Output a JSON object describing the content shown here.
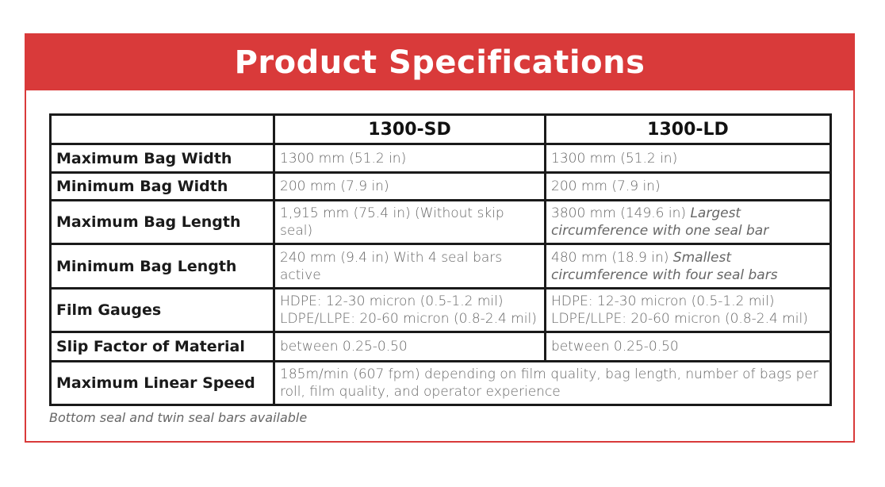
{
  "title": "Product Specifications",
  "colors": {
    "accent": "#d93a3a"
  },
  "table": {
    "models": [
      "1300-SD",
      "1300-LD"
    ],
    "rows": [
      {
        "label": "Maximum Bag Width",
        "sd": "1300 mm (51.2 in)",
        "ld": "1300 mm (51.2 in)"
      },
      {
        "label": "Minimum Bag Width",
        "sd": "200 mm (7.9 in)",
        "ld": "200 mm (7.9 in)"
      },
      {
        "label": "Maximum Bag Length",
        "sd": "1,915 mm (75.4 in) (Without skip seal)",
        "ld": "3800 mm (149.6 in)",
        "ld_note": "Largest circumference with one seal bar"
      },
      {
        "label": "Minimum Bag Length",
        "sd": "240 mm (9.4 in) With 4 seal bars active",
        "ld": "480 mm (18.9 in)",
        "ld_note": "Smallest circumference with four seal bars"
      },
      {
        "label": "Film Gauges",
        "sd_line1": "HDPE:  12-30 micron (0.5-1.2 mil)",
        "sd_line2": "LDPE/LLPE:  20-60 micron (0.8-2.4 mil)",
        "ld_line1": "HDPE:  12-30 micron (0.5-1.2 mil)",
        "ld_line2": "LDPE/LLPE:  20-60 micron (0.8-2.4 mil)"
      },
      {
        "label": "Slip Factor of Material",
        "sd": "between 0.25-0.50",
        "ld": "between 0.25-0.50"
      },
      {
        "label": "Maximum Linear Speed",
        "both": "185m/min (607 fpm) depending on film quality, bag length, number of bags per roll, film quality, and operator experience"
      }
    ]
  },
  "footnote": {
    "part1": "Bottom seal",
    "part2": " and ",
    "part3": "twin seal",
    "part4": " bars available"
  }
}
